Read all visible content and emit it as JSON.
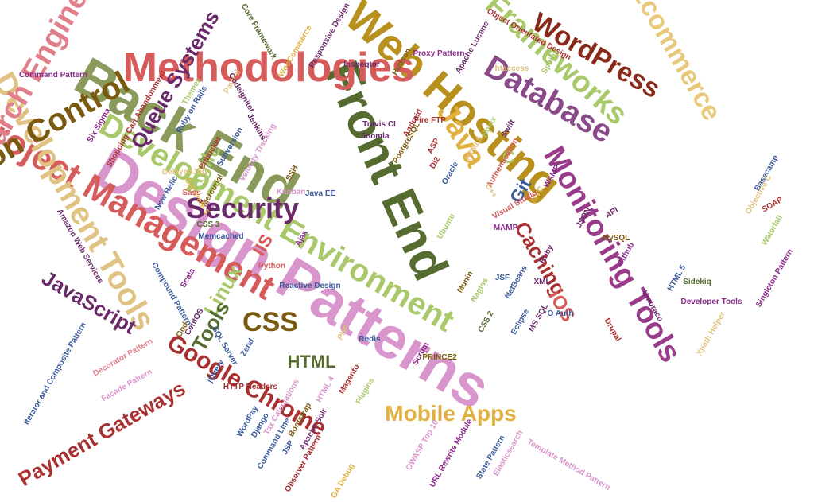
{
  "words": [
    {
      "text": "Design Patterns",
      "color": "#d896cc"
    },
    {
      "text": "Back End",
      "color": "#8a9a5b"
    },
    {
      "text": "Front End",
      "color": "#556b2f"
    },
    {
      "text": "Web Hosting",
      "color": "#b8901e"
    },
    {
      "text": "Project Management",
      "color": "#d65b5b"
    },
    {
      "text": "Methodologies",
      "color": "#d65b5b"
    },
    {
      "text": "Development Environment",
      "color": "#a8c86a"
    },
    {
      "text": "Development Tools",
      "color": "#e0c282"
    },
    {
      "text": "Version Control",
      "color": "#7a5a10"
    },
    {
      "text": "Search Engines",
      "color": "#e07e8a"
    },
    {
      "text": "Frameworks",
      "color": "#a8c86a"
    },
    {
      "text": "Database",
      "color": "#8a4a8a"
    },
    {
      "text": "Ecommerce",
      "color": "#e8c87a"
    },
    {
      "text": "WordPress",
      "color": "#8a2a1a"
    },
    {
      "text": "Monitoring Tools",
      "color": "#9a3a8a"
    },
    {
      "text": "Google Chrome",
      "color": "#a83030"
    },
    {
      "text": "Security",
      "color": "#6a2a6a"
    },
    {
      "text": "Mobile Apps",
      "color": "#e0b040"
    },
    {
      "text": "Payment Gateways",
      "color": "#a83030"
    },
    {
      "text": "Queue Systems",
      "color": "#6a2a6a"
    },
    {
      "text": "JavaScript",
      "color": "#6a2a6a"
    },
    {
      "text": "Java",
      "color": "#e0b040"
    },
    {
      "text": "CSS",
      "color": "#7a5a10"
    },
    {
      "text": "Caching",
      "color": "#a83030"
    },
    {
      "text": "Linux",
      "color": "#a8c86a"
    },
    {
      "text": "Tools",
      "color": "#556b2f"
    },
    {
      "text": "HTML",
      "color": "#556b2f"
    },
    {
      "text": "Agile",
      "color": "#a8c86a"
    },
    {
      "text": "IIS",
      "color": "#d65b5b"
    },
    {
      "text": "iOS",
      "color": "#d65b5b"
    },
    {
      "text": "Git",
      "color": "#3a5a9a"
    },
    {
      "text": "C",
      "color": "#a8c86a"
    },
    {
      "text": "Command Pattern",
      "color": "#8a2a8a"
    },
    {
      "text": "Six Sigma",
      "color": "#8a2a8a"
    },
    {
      "text": "Shopping Cart Abandonment",
      "color": "#a83030"
    },
    {
      "text": "Themes",
      "color": "#a8c86a"
    },
    {
      "text": "Ruby on Rails",
      "color": "#3a5a9a"
    },
    {
      "text": "PayPal",
      "color": "#e0c282"
    },
    {
      "text": "Codeigniter",
      "color": "#6a2a6a"
    },
    {
      "text": "Core Framework",
      "color": "#556b2f"
    },
    {
      "text": "WooCommerce",
      "color": "#e0b040"
    },
    {
      "text": "Responsive Design",
      "color": "#6a2a6a"
    },
    {
      "text": "Inspeqtor",
      "color": "#6a2a6a"
    },
    {
      "text": "Hudson",
      "color": "#7a5a10"
    },
    {
      "text": "Proxy Pattern",
      "color": "#8a2a8a"
    },
    {
      "text": "Apache Lucene",
      "color": "#6a2a6a"
    },
    {
      "text": "Object Orientated Design",
      "color": "#a83030"
    },
    {
      "text": "htaccess",
      "color": "#e0c282"
    },
    {
      "text": "Sphinx",
      "color": "#a8c86a"
    },
    {
      "text": "Travis CI",
      "color": "#6a2a6a"
    },
    {
      "text": "Android",
      "color": "#a83030"
    },
    {
      "text": "Fire FTP",
      "color": "#a83030"
    },
    {
      "text": "Joomla",
      "color": "#6a2a6a"
    },
    {
      "text": "PostgreSQL",
      "color": "#7a5a10"
    },
    {
      "text": "Jenkins",
      "color": "#6a2a6a"
    },
    {
      "text": "Subversion",
      "color": "#3a5a9a"
    },
    {
      "text": "Velocity Tracking",
      "color": "#d896cc"
    },
    {
      "text": "Bitbucket",
      "color": "#a83030"
    },
    {
      "text": "DelayedJob",
      "color": "#e0c282"
    },
    {
      "text": "Mercurial",
      "color": "#7a5a10"
    },
    {
      "text": "SSH",
      "color": "#7a5a10"
    },
    {
      "text": "Kanban",
      "color": "#d896cc"
    },
    {
      "text": "Java EE",
      "color": "#3a5a9a"
    },
    {
      "text": "DI2",
      "color": "#a83030"
    },
    {
      "text": "Oracle",
      "color": "#3a5a9a"
    },
    {
      "text": "ASP",
      "color": "#a83030"
    },
    {
      "text": "HTML5",
      "color": "#e0c282"
    },
    {
      "text": "Nginx",
      "color": "#a8c86a"
    },
    {
      "text": "Swift",
      "color": "#6a2a6a"
    },
    {
      "text": "Authentication",
      "color": "#d65b5b"
    },
    {
      "text": "C++",
      "color": "#e0c282"
    },
    {
      "text": "WAMP",
      "color": "#8a2a8a"
    },
    {
      "text": "MVC",
      "color": "#e0b040"
    },
    {
      "text": "Visual Studio",
      "color": "#d65b5b"
    },
    {
      "text": "MAMP",
      "color": "#8a2a8a"
    },
    {
      "text": "Basecamp",
      "color": "#3a5a9a"
    },
    {
      "text": "Objective C",
      "color": "#e0c282"
    },
    {
      "text": "SOAP",
      "color": "#a83030"
    },
    {
      "text": "Waterfall",
      "color": "#a8c86a"
    },
    {
      "text": "JSON",
      "color": "#6a2a6a"
    },
    {
      "text": "API",
      "color": "#6a2a6a"
    },
    {
      "text": "MySQL",
      "color": "#7a5a10"
    },
    {
      "text": "Github",
      "color": "#8a2a8a"
    },
    {
      "text": "HTML 5",
      "color": "#3a5a9a"
    },
    {
      "text": "Sidekiq",
      "color": "#556b2f"
    },
    {
      "text": "Singleton Pattern",
      "color": "#8a2a8a"
    },
    {
      "text": "Umbraco",
      "color": "#6a2a6a"
    },
    {
      "text": "Developer Tools",
      "color": "#8a2a8a"
    },
    {
      "text": "Xpath Helper",
      "color": "#e0c282"
    },
    {
      "text": "Drupal",
      "color": "#a83030"
    },
    {
      "text": "O Auth",
      "color": "#3a5a9a"
    },
    {
      "text": "MS SQL",
      "color": "#6a2a6a"
    },
    {
      "text": "Eclipse",
      "color": "#3a5a9a"
    },
    {
      "text": "XML",
      "color": "#6a2a6a"
    },
    {
      "text": "Ruby",
      "color": "#6a2a6a"
    },
    {
      "text": "NetBeans",
      "color": "#3a5a9a"
    },
    {
      "text": "JSF",
      "color": "#3a5a9a"
    },
    {
      "text": "Ubuntu",
      "color": "#a8c86a"
    },
    {
      "text": "Munin",
      "color": "#7a5a10"
    },
    {
      "text": "Nagios",
      "color": "#a8c86a"
    },
    {
      "text": "CSS 2",
      "color": "#556b2f"
    },
    {
      "text": "PRINCE2",
      "color": "#7a5a10"
    },
    {
      "text": "Scrum",
      "color": "#8a2a8a"
    },
    {
      "text": "Redis",
      "color": "#3a5a9a"
    },
    {
      "text": "PHP",
      "color": "#e0c282"
    },
    {
      "text": "Ajax",
      "color": "#8a2a8a"
    },
    {
      "text": "Python",
      "color": "#d65b5b"
    },
    {
      "text": "Memcached",
      "color": "#3a5a9a"
    },
    {
      "text": "CSS 3",
      "color": "#556b2f"
    },
    {
      "text": "Reactive Design",
      "color": "#3a5a9a"
    },
    {
      "text": "Scala",
      "color": "#8a2a8a"
    },
    {
      "text": "New Relic",
      "color": "#3a5a9a"
    },
    {
      "text": "Concrete 5",
      "color": "#e0b040"
    },
    {
      "text": "Sass",
      "color": "#d65b5b"
    },
    {
      "text": "Amazon Web Services",
      "color": "#6a2a6a"
    },
    {
      "text": "Compound Pattern",
      "color": "#3a5a9a"
    },
    {
      "text": "CentOS",
      "color": "#6a2a6a"
    },
    {
      "text": "God",
      "color": "#7a5a10"
    },
    {
      "text": "SQL Server",
      "color": "#3a5a9a"
    },
    {
      "text": "Zend",
      "color": "#3a5a9a"
    },
    {
      "text": "jQuery",
      "color": "#3a5a9a"
    },
    {
      "text": "Decorator Pattern",
      "color": "#e07e8a"
    },
    {
      "text": "Façade Pattern",
      "color": "#d896cc"
    },
    {
      "text": "Iterator and Composite Pattern",
      "color": "#3a5a9a"
    },
    {
      "text": "HTTP Headers",
      "color": "#a83030"
    },
    {
      "text": "WordPay",
      "color": "#3a5a9a"
    },
    {
      "text": "Django",
      "color": "#3a5a9a"
    },
    {
      "text": "Tax Calculations",
      "color": "#d896cc"
    },
    {
      "text": "Bootstrap",
      "color": "#7a5a10"
    },
    {
      "text": "Apache Solr",
      "color": "#6a2a6a"
    },
    {
      "text": "Command Line",
      "color": "#3a5a9a"
    },
    {
      "text": "JSP",
      "color": "#3a5a9a"
    },
    {
      "text": "Observer Pattern",
      "color": "#a83030"
    },
    {
      "text": "Magento",
      "color": "#a83030"
    },
    {
      "text": "HTML 4",
      "color": "#d896cc"
    },
    {
      "text": "Plugins",
      "color": "#a8c86a"
    },
    {
      "text": "OWASP Top 10",
      "color": "#d896cc"
    },
    {
      "text": "URL Rewrite Module",
      "color": "#8a2a8a"
    },
    {
      "text": "State Pattern",
      "color": "#3a5a9a"
    },
    {
      "text": "Elasticsearch",
      "color": "#d896cc"
    },
    {
      "text": "Template Method Pattern",
      "color": "#d896cc"
    },
    {
      "text": "GA Debug",
      "color": "#e0b040"
    }
  ]
}
